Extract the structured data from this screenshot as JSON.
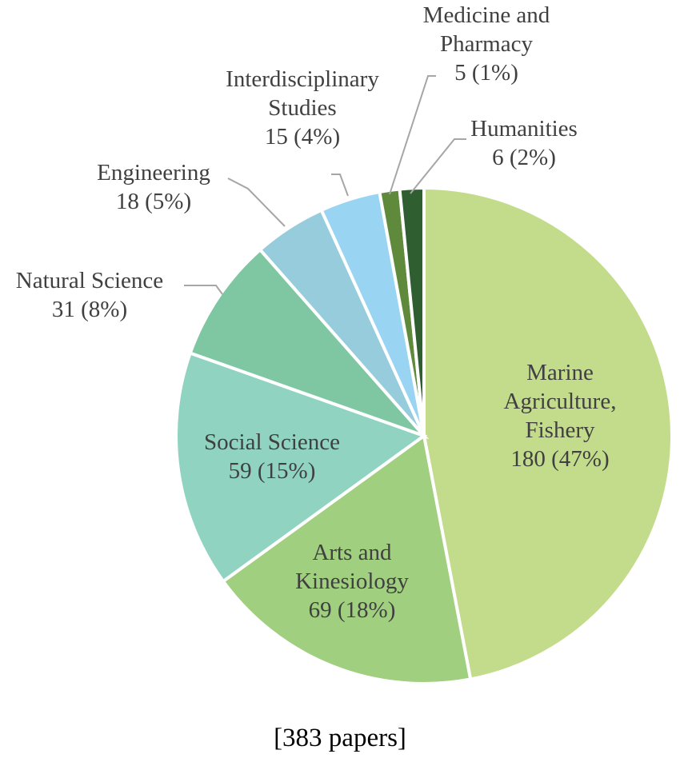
{
  "chart_data": {
    "type": "pie",
    "slices": [
      {
        "label_lines": [
          "Marine",
          "Agriculture,",
          "Fishery"
        ],
        "value_text": "180 (47%)",
        "value": 180,
        "color": "#c3dc8b"
      },
      {
        "label_lines": [
          "Arts and",
          "Kinesiology"
        ],
        "value_text": "69 (18%)",
        "value": 69,
        "color": "#9fcf7f"
      },
      {
        "label_lines": [
          "Social Science"
        ],
        "value_text": "59 (15%)",
        "value": 59,
        "color": "#8fd3c0"
      },
      {
        "label_lines": [
          "Natural Science"
        ],
        "value_text": "31 (8%)",
        "value": 31,
        "color": "#7fc7a2"
      },
      {
        "label_lines": [
          "Engineering"
        ],
        "value_text": "18 (5%)",
        "value": 18,
        "color": "#96ccdc"
      },
      {
        "label_lines": [
          "Interdisciplinary",
          "Studies"
        ],
        "value_text": "15 (4%)",
        "value": 15,
        "color": "#99d5f2"
      },
      {
        "label_lines": [
          "Medicine and",
          "Pharmacy"
        ],
        "value_text": "5 (1%)",
        "value": 5,
        "color": "#5f8a3c"
      },
      {
        "label_lines": [
          "Humanities"
        ],
        "value_text": "6 (2%)",
        "value": 6,
        "color": "#2f5f30"
      }
    ],
    "total_label": "[383 papers]"
  }
}
